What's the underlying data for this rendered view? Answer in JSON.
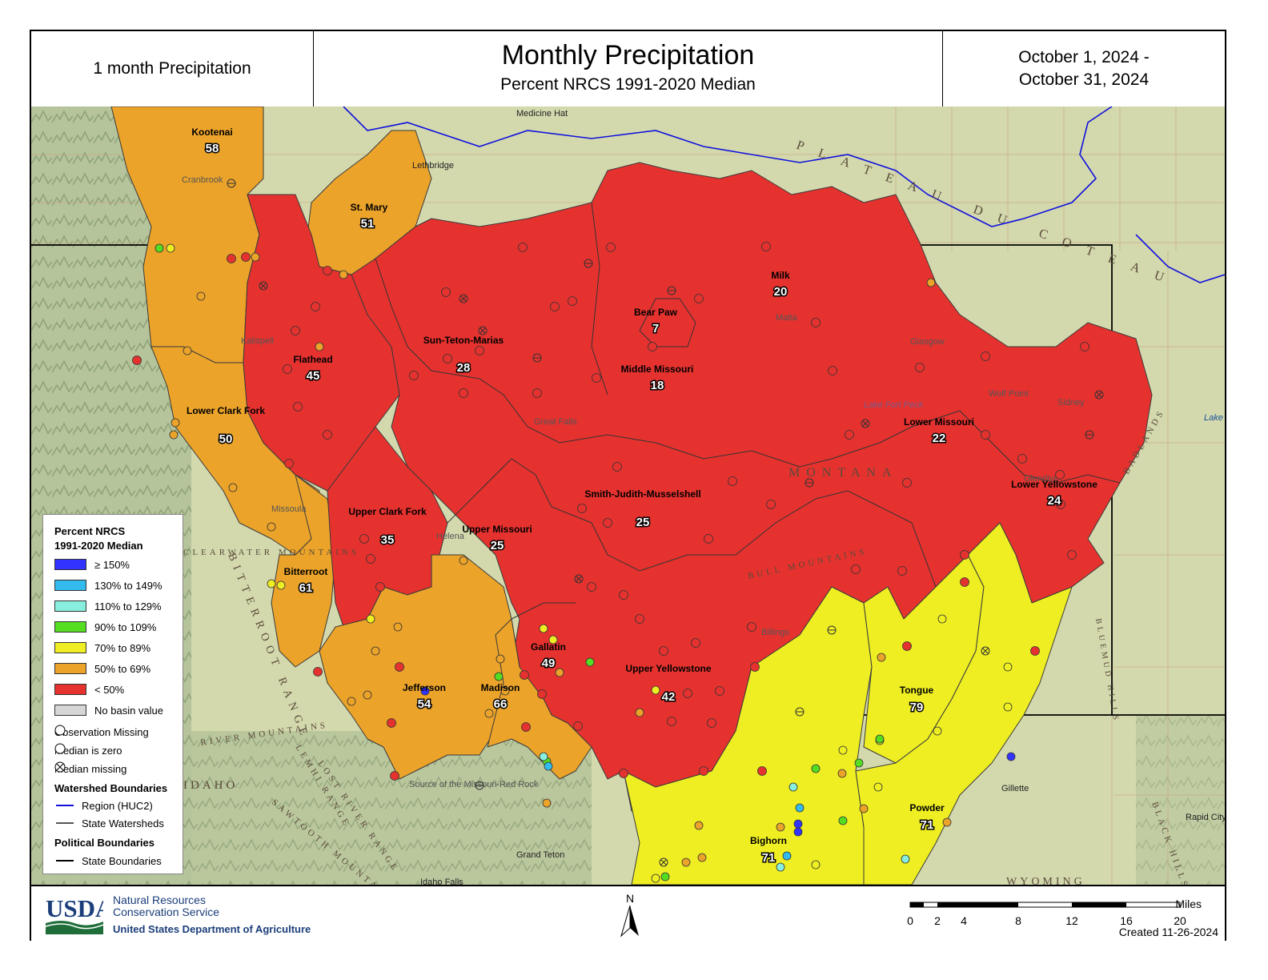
{
  "header": {
    "left_label": "1 month Precipitation",
    "title": "Monthly Precipitation",
    "subtitle": "Percent NRCS 1991-2020 Median",
    "date_line1": "October 1, 2024 -",
    "date_line2": "October 31, 2024"
  },
  "colors": {
    "ge150": "#3333ff",
    "p130_149": "#33bbee",
    "p110_129": "#88eedd",
    "p90_109": "#55dd22",
    "p70_89": "#eeee22",
    "p50_69": "#eba32a",
    "lt50": "#e5322f",
    "no_value": "#d6d6d6",
    "region_line": "#1111dd",
    "terrain": "#cdd7a8"
  },
  "basins": [
    {
      "name": "Kootenai",
      "value": "58",
      "class": "p50_69"
    },
    {
      "name": "St. Mary",
      "value": "51",
      "class": "p50_69"
    },
    {
      "name": "Flathead",
      "value": "45",
      "class": "lt50"
    },
    {
      "name": "Lower Clark Fork",
      "value": "50",
      "class": "p50_69"
    },
    {
      "name": "Sun-Teton-Marias",
      "value": "28",
      "class": "lt50"
    },
    {
      "name": "Milk",
      "value": "20",
      "class": "lt50"
    },
    {
      "name": "Bear Paw",
      "value": "7",
      "class": "lt50"
    },
    {
      "name": "Middle Missouri",
      "value": "18",
      "class": "lt50"
    },
    {
      "name": "Lower Missouri",
      "value": "22",
      "class": "lt50"
    },
    {
      "name": "Lower Yellowstone",
      "value": "24",
      "class": "lt50"
    },
    {
      "name": "Smith-Judith-Musselshell",
      "value": "25",
      "class": "lt50"
    },
    {
      "name": "Upper Clark Fork",
      "value": "35",
      "class": "lt50"
    },
    {
      "name": "Upper Missouri",
      "value": "25",
      "class": "lt50"
    },
    {
      "name": "Bitterroot",
      "value": "61",
      "class": "p50_69"
    },
    {
      "name": "Jefferson",
      "value": "54",
      "class": "p50_69"
    },
    {
      "name": "Madison",
      "value": "66",
      "class": "p50_69"
    },
    {
      "name": "Gallatin",
      "value": "49",
      "class": "lt50"
    },
    {
      "name": "Upper Yellowstone",
      "value": "42",
      "class": "lt50"
    },
    {
      "name": "Tongue",
      "value": "79",
      "class": "p70_89"
    },
    {
      "name": "Powder",
      "value": "71",
      "class": "p70_89"
    },
    {
      "name": "Bighorn",
      "value": "71",
      "class": "p70_89"
    }
  ],
  "place_labels": [
    "Medicine Hat",
    "Lethbridge",
    "Cranbrook",
    "Kalispell",
    "Missoula",
    "Great Falls",
    "Helena",
    "Malta",
    "Glasgow",
    "Wolf Point",
    "Sidney",
    "Glendive",
    "Billings",
    "Gillette",
    "Rapid City",
    "Idaho Falls",
    "Grand Teton",
    "Lake Fort Peck",
    "Source of the Missouri-Red Rock",
    "Lake Sak"
  ],
  "region_labels": [
    "PLATEAU DU COTEAU",
    "MONTANA",
    "IDAHO",
    "WYOMING",
    "BADLANDS",
    "BITTERROOT RANGE",
    "CLEARWATER MOUNTAINS",
    "BLUEMUD HILLS",
    "BLACK HILLS",
    "BULL MOUNTAINS",
    "RIVER MOUNTAINS",
    "LEMHI RANGE",
    "LOST RIVER RANGE",
    "SAWTOOTH MOUNTAINS"
  ],
  "legend": {
    "title1": "Percent NRCS",
    "title2": "1991-2020 Median",
    "classes": [
      {
        "label": "≥ 150%",
        "class": "ge150"
      },
      {
        "label": "130% to 149%",
        "class": "p130_149"
      },
      {
        "label": "110% to 129%",
        "class": "p110_129"
      },
      {
        "label": "90% to 109%",
        "class": "p90_109"
      },
      {
        "label": "70% to 89%",
        "class": "p70_89"
      },
      {
        "label": "50% to 69%",
        "class": "p50_69"
      },
      {
        "label": "< 50%",
        "class": "lt50"
      },
      {
        "label": "No basin value",
        "class": "no_value"
      }
    ],
    "obs_missing": "Observation Missing",
    "median_zero": "Median is zero",
    "median_missing": "Median missing",
    "watershed_head": "Watershed Boundaries",
    "region_huc2": "Region (HUC2)",
    "state_watersheds": "State Watersheds",
    "political_head": "Political Boundaries",
    "state_boundaries": "State Boundaries"
  },
  "footer": {
    "agency_line1": "Natural Resources",
    "agency_line2": "Conservation Service",
    "dept": "United States Department of Agriculture",
    "usda": "USDA",
    "north": "N",
    "scale_unit": "Miles",
    "scale_ticks": [
      "0",
      "2",
      "4",
      "8",
      "12",
      "16",
      "20"
    ],
    "created": "Created 11-26-2024"
  }
}
